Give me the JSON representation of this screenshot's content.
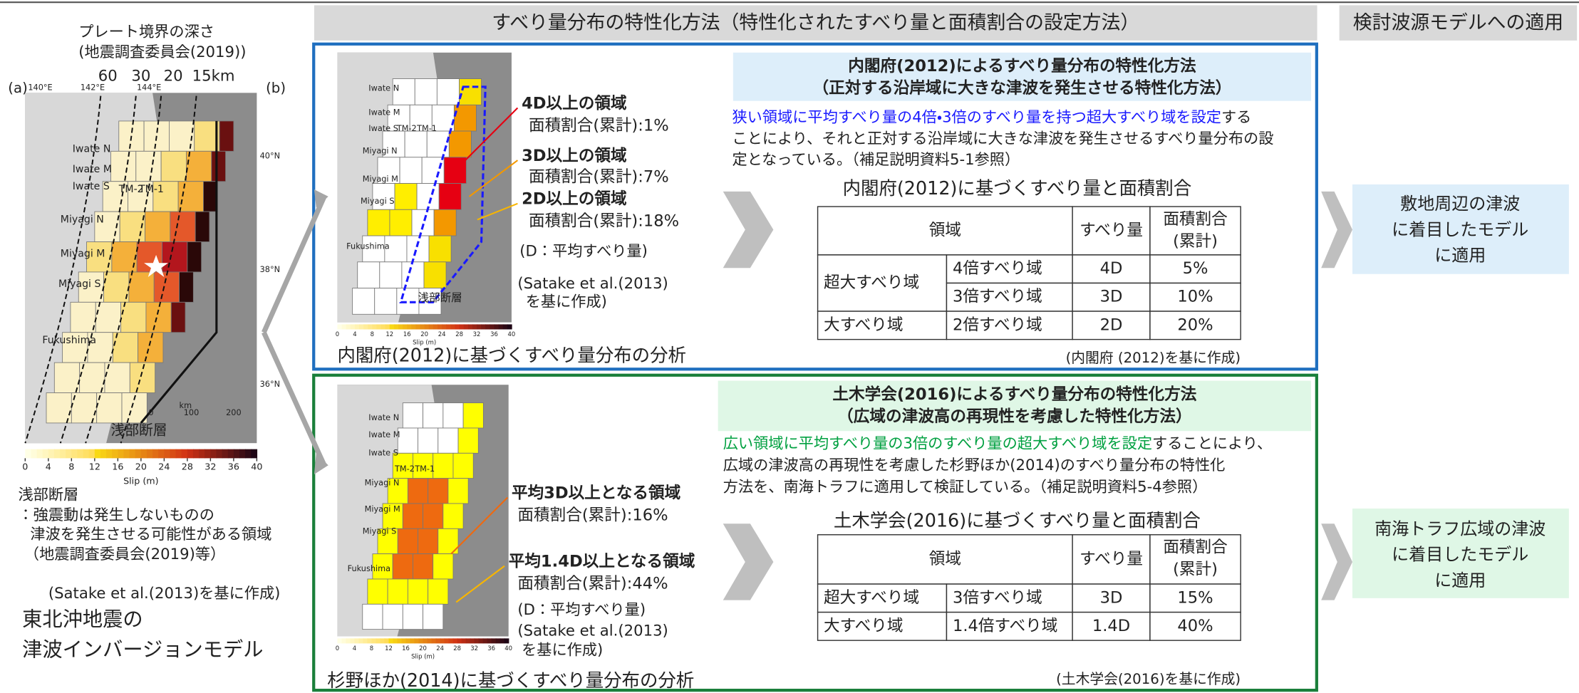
{
  "header": {
    "middle": "すべり量分布の特性化方法（特性化されたすべり量と面積割合の設定方法）",
    "right": "検討波源モデルへの適用"
  },
  "left": {
    "depth_title": "プレート境界の深さ",
    "depth_source": "(地震調査委員会(2019))",
    "depth_labels": [
      "60",
      "30",
      "20",
      "15km"
    ],
    "panel_labels": [
      "(a)",
      "(b)"
    ],
    "longitudes": [
      "140°E",
      "142°E",
      "144°E"
    ],
    "latitudes": [
      "40°N",
      "38°N",
      "36°N"
    ],
    "regions": [
      "Iwate N",
      "Iwate M",
      "Iwate S",
      "TM-2",
      "TM-1",
      "Miyagi N",
      "Miyagi M",
      "Miyagi S",
      "Fukushima"
    ],
    "shallow_fault": "浅部断層",
    "km": "km",
    "km_ticks": [
      0,
      100,
      200
    ],
    "colorbar_ticks": [
      0,
      4,
      8,
      12,
      16,
      20,
      24,
      28,
      32,
      36,
      40
    ],
    "colorbar_label": "Slip (m)",
    "notes": [
      "浅部断層",
      "：強震動は発生しないものの",
      "津波を発生させる可能性がある領域",
      "（地震調査委員会(2019)等）"
    ],
    "source": "(Satake et al.(2013)を基に作成)",
    "title": [
      "東北沖地震の",
      "津波インバージョンモデル"
    ]
  },
  "sections": [
    {
      "legend": [
        {
          "label": "4D以上の領域",
          "ratio": "面積割合(累計):1%",
          "color": "#e60012"
        },
        {
          "label": "3D以上の領域",
          "ratio": "面積割合(累計):7%",
          "color": "#f39800"
        },
        {
          "label": "2D以上の領域",
          "ratio": "面積割合(累計):18%",
          "color": "#f8b500"
        }
      ],
      "note": "(D：平均すべり量)",
      "map_source": [
        "(Satake et al.(2013)",
        "を基に作成)"
      ],
      "map_label": "浅部断層",
      "caption": "内閣府(2012)に基づくすべり量分布の分析",
      "title": [
        "内閣府(2012)によるすべり量分布の特性化方法",
        "（正対する沿岸域に大きな津波を発生させる特性化方法）"
      ],
      "description": {
        "highlight": "狭い領域に平均すべり量の4倍・3倍のすべり量を持つ超大すべり域を設定",
        "highlight_color": "#1a1aff",
        "lines": [
          "する",
          "ことにより、それと正対する沿岸域に大きな津波を発生させるすべり量分布の設",
          "定となっている。（補足説明資料5-1参照）"
        ]
      },
      "table": {
        "title": "内閣府(2012)に基づくすべり量と面積割合",
        "headers": [
          "領域",
          "すべり量",
          [
            "面積割合",
            "(累計)"
          ]
        ],
        "groups": [
          {
            "name": "超大すべり域",
            "rows": [
              [
                "4倍すべり域",
                "4D",
                "5%"
              ],
              [
                "3倍すべり域",
                "3D",
                "10%"
              ]
            ]
          },
          {
            "name": "大すべり域",
            "rows": [
              [
                "2倍すべり域",
                "2D",
                "20%"
              ]
            ]
          }
        ],
        "source": "(内閣府 (2012)を基に作成)"
      },
      "application": [
        "敷地周辺の津波",
        "に着目したモデル",
        "に適用"
      ]
    },
    {
      "legend": [
        {
          "label": "平均3D以上となる領域",
          "ratio": "面積割合(累計):16%",
          "color": "#ee6a10"
        },
        {
          "label": "平均1.4D以上となる領域",
          "ratio": "面積割合(累計):44%",
          "color": "#f8b500"
        }
      ],
      "note": "(D：平均すべり量)",
      "map_source": [
        "(Satake et al.(2013)",
        "を基に作成)"
      ],
      "caption": "杉野ほか(2014)に基づくすべり量分布の分析",
      "title": [
        "土木学会(2016)によるすべり量分布の特性化方法",
        "（広域の津波高の再現性を考慮した特性化方法）"
      ],
      "description": {
        "highlight": "広い領域に平均すべり量の3倍のすべり量の超大すべり域を設定",
        "highlight_color": "#00a040",
        "lines": [
          "することにより、",
          "広域の津波高の再現性を考慮した杉野ほか(2014)のすべり量分布の特性化",
          "方法を、南海トラフに適用して検証している。（補足説明資料5-4参照）"
        ]
      },
      "table": {
        "title": "土木学会(2016)に基づくすべり量と面積割合",
        "headers": [
          "領域",
          "すべり量",
          [
            "面積割合",
            "(累計)"
          ]
        ],
        "groups": [
          {
            "name": "超大すべり域",
            "rows": [
              [
                "3倍すべり域",
                "3D",
                "15%"
              ]
            ]
          },
          {
            "name": "大すべり域",
            "rows": [
              [
                "1.4倍すべり域",
                "1.4D",
                "40%"
              ]
            ]
          }
        ],
        "source": "(土木学会(2016)を基に作成)"
      },
      "application": [
        "南海トラフ広域の津波",
        "に着目したモデル",
        "に適用"
      ]
    }
  ]
}
